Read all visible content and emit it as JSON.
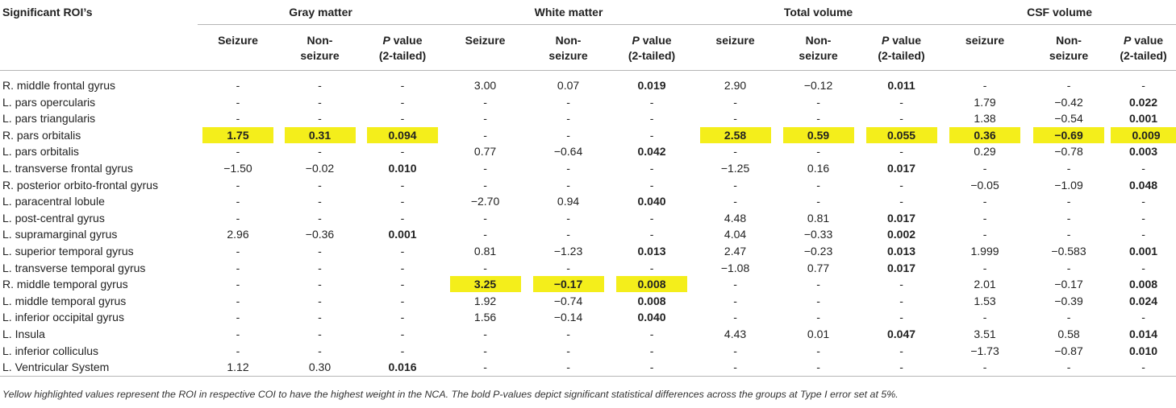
{
  "table": {
    "roi_header": "Significant ROI’s",
    "groups": [
      "Gray matter",
      "White matter",
      "Total volume",
      "CSF volume"
    ],
    "subheaders": [
      [
        "Seizure",
        "Non-\nseizure",
        "P value\n(2-tailed)"
      ],
      [
        "Seizure",
        "Non-\nseizure",
        "P value\n(2-tailed)"
      ],
      [
        "seizure",
        "Non-\nseizure",
        "P value\n(2-tailed)"
      ],
      [
        "seizure",
        "Non-\nseizure",
        "P value\n(2-tailed)"
      ]
    ],
    "rows": [
      {
        "name": "R. middle frontal gyrus",
        "cells": [
          "-",
          "-",
          "-",
          "3.00",
          "0.07",
          "0.019",
          "2.90",
          "−0.12",
          "0.011",
          "-",
          "-",
          "-"
        ],
        "bold": [
          5,
          8
        ],
        "hl": []
      },
      {
        "name": "L. pars opercularis",
        "cells": [
          "-",
          "-",
          "-",
          "-",
          "-",
          "-",
          "-",
          "-",
          "-",
          "1.79",
          "−0.42",
          "0.022"
        ],
        "bold": [
          11
        ],
        "hl": []
      },
      {
        "name": "L. pars triangularis",
        "cells": [
          "-",
          "-",
          "-",
          "-",
          "-",
          "-",
          "-",
          "-",
          "-",
          "1.38",
          "−0.54",
          "0.001"
        ],
        "bold": [
          11
        ],
        "hl": []
      },
      {
        "name": "R. pars orbitalis",
        "cells": [
          "1.75",
          "0.31",
          "0.094",
          "-",
          "-",
          "-",
          "2.58",
          "0.59",
          "0.055",
          "0.36",
          "−0.69",
          "0.009"
        ],
        "bold": [],
        "hl": [
          0,
          1,
          2,
          6,
          7,
          8,
          9,
          10,
          11
        ]
      },
      {
        "name": "L. pars orbitalis",
        "cells": [
          "-",
          "-",
          "-",
          "0.77",
          "−0.64",
          "0.042",
          "-",
          "-",
          "-",
          "0.29",
          "−0.78",
          "0.003"
        ],
        "bold": [
          5,
          11
        ],
        "hl": []
      },
      {
        "name": "L. transverse frontal gyrus",
        "cells": [
          "−1.50",
          "−0.02",
          "0.010",
          "-",
          "-",
          "-",
          "−1.25",
          "0.16",
          "0.017",
          "-",
          "-",
          "-"
        ],
        "bold": [
          2,
          8
        ],
        "hl": []
      },
      {
        "name": "R. posterior orbito-frontal gyrus",
        "cells": [
          "-",
          "-",
          "-",
          "-",
          "-",
          "-",
          "-",
          "-",
          "-",
          "−0.05",
          "−1.09",
          "0.048"
        ],
        "bold": [
          11
        ],
        "hl": []
      },
      {
        "name": "L. paracentral lobule",
        "cells": [
          "-",
          "-",
          "-",
          "−2.70",
          "0.94",
          "0.040",
          "-",
          "-",
          "-",
          "-",
          "-",
          "-"
        ],
        "bold": [
          5
        ],
        "hl": []
      },
      {
        "name": "L. post-central gyrus",
        "cells": [
          "-",
          "-",
          "-",
          "-",
          "-",
          "-",
          "4.48",
          "0.81",
          "0.017",
          "-",
          "-",
          "-"
        ],
        "bold": [
          8
        ],
        "hl": []
      },
      {
        "name": "L. supramarginal gyrus",
        "cells": [
          "2.96",
          "−0.36",
          "0.001",
          "-",
          "-",
          "-",
          "4.04",
          "−0.33",
          "0.002",
          "-",
          "-",
          "-"
        ],
        "bold": [
          2,
          8
        ],
        "hl": []
      },
      {
        "name": "L. superior temporal gyrus",
        "cells": [
          "-",
          "-",
          "-",
          "0.81",
          "−1.23",
          "0.013",
          "2.47",
          "−0.23",
          "0.013",
          "1.999",
          "−0.583",
          "0.001"
        ],
        "bold": [
          5,
          8,
          11
        ],
        "hl": []
      },
      {
        "name": "L. transverse temporal gyrus",
        "cells": [
          "-",
          "-",
          "-",
          "-",
          "-",
          "-",
          "−1.08",
          "0.77",
          "0.017",
          "-",
          "-",
          "-"
        ],
        "bold": [
          8
        ],
        "hl": []
      },
      {
        "name": "R. middle temporal gyrus",
        "cells": [
          "-",
          "-",
          "-",
          "3.25",
          "−0.17",
          "0.008",
          "-",
          "-",
          "-",
          "2.01",
          "−0.17",
          "0.008"
        ],
        "bold": [
          11
        ],
        "hl": [
          3,
          4,
          5
        ]
      },
      {
        "name": "L. middle temporal gyrus",
        "cells": [
          "-",
          "-",
          "-",
          "1.92",
          "−0.74",
          "0.008",
          "-",
          "-",
          "-",
          "1.53",
          "−0.39",
          "0.024"
        ],
        "bold": [
          5,
          11
        ],
        "hl": []
      },
      {
        "name": "L. inferior occipital gyrus",
        "cells": [
          "-",
          "-",
          "-",
          "1.56",
          "−0.14",
          "0.040",
          "-",
          "-",
          "-",
          "-",
          "-",
          "-"
        ],
        "bold": [
          5
        ],
        "hl": []
      },
      {
        "name": "L. Insula",
        "cells": [
          "-",
          "-",
          "-",
          "-",
          "-",
          "-",
          "4.43",
          "0.01",
          "0.047",
          "3.51",
          "0.58",
          "0.014"
        ],
        "bold": [
          8,
          11
        ],
        "hl": []
      },
      {
        "name": "L. inferior colliculus",
        "cells": [
          "-",
          "-",
          "-",
          "-",
          "-",
          "-",
          "-",
          "-",
          "-",
          "−1.73",
          "−0.87",
          "0.010"
        ],
        "bold": [
          11
        ],
        "hl": []
      },
      {
        "name": "L. Ventricular System",
        "cells": [
          "1.12",
          "0.30",
          "0.016",
          "-",
          "-",
          "-",
          "-",
          "-",
          "-",
          "-",
          "-",
          "-"
        ],
        "bold": [
          2
        ],
        "hl": []
      }
    ]
  },
  "footnote": "Yellow highlighted values represent the ROI in respective COI to have the highest weight in the NCA. The bold P-values depict significant statistical differences across the groups at Type I error set at 5%.",
  "colors": {
    "highlight": "#f4ee1b",
    "rule": "#b5b5b5"
  }
}
